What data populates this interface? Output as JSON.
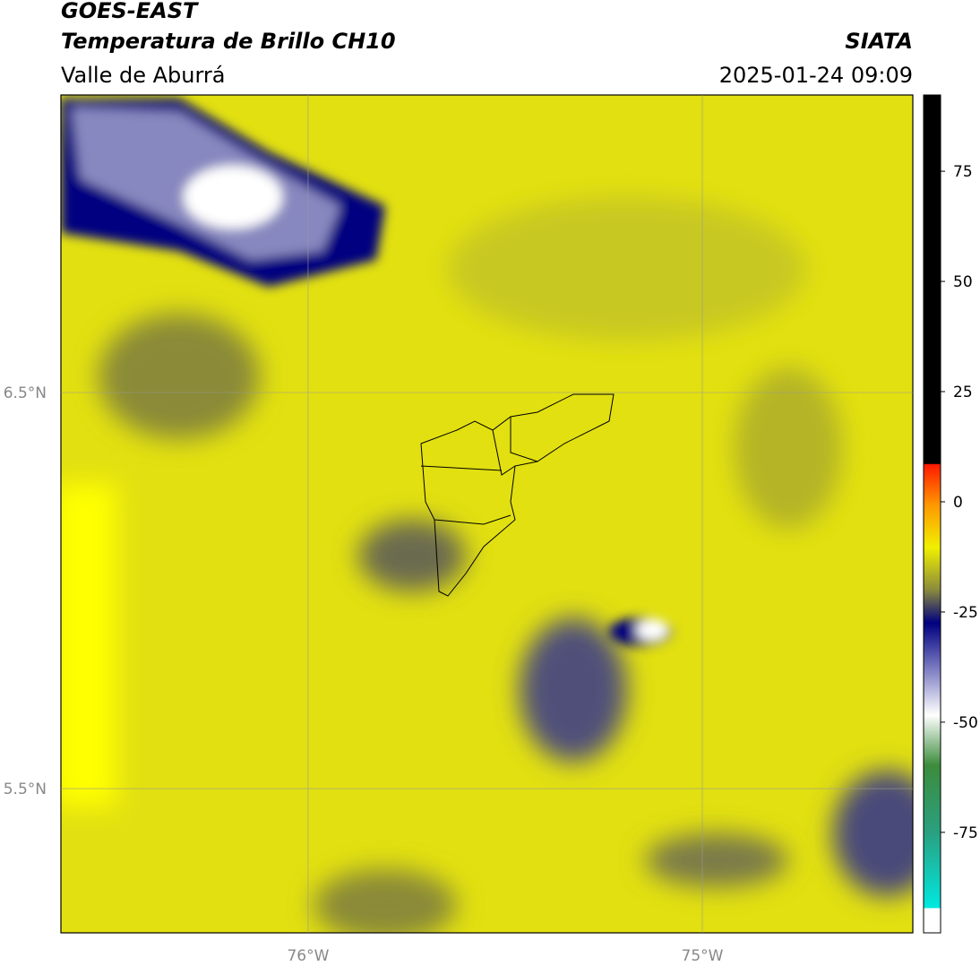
{
  "header": {
    "title": "GOES-EAST",
    "subtitle": "Temperatura de Brillo CH10",
    "region": "Valle de Aburrá",
    "source": "SIATA",
    "datetime": "2025-01-24 09:09"
  },
  "map": {
    "xlim": [
      -76.627,
      -74.466
    ],
    "ylim": [
      5.136,
      7.251
    ],
    "xticks": [
      {
        "value": -76,
        "label": "76°W"
      },
      {
        "value": -75,
        "label": "75°W"
      }
    ],
    "yticks": [
      {
        "value": 6.5,
        "label": "6.5°N"
      },
      {
        "value": 5.5,
        "label": "5.5°N"
      }
    ],
    "grid": true
  },
  "colorbar": {
    "lim": [
      -97.8,
      92.3
    ],
    "ticks": [
      -75,
      -50,
      -25,
      0,
      25,
      50,
      75
    ]
  }
}
